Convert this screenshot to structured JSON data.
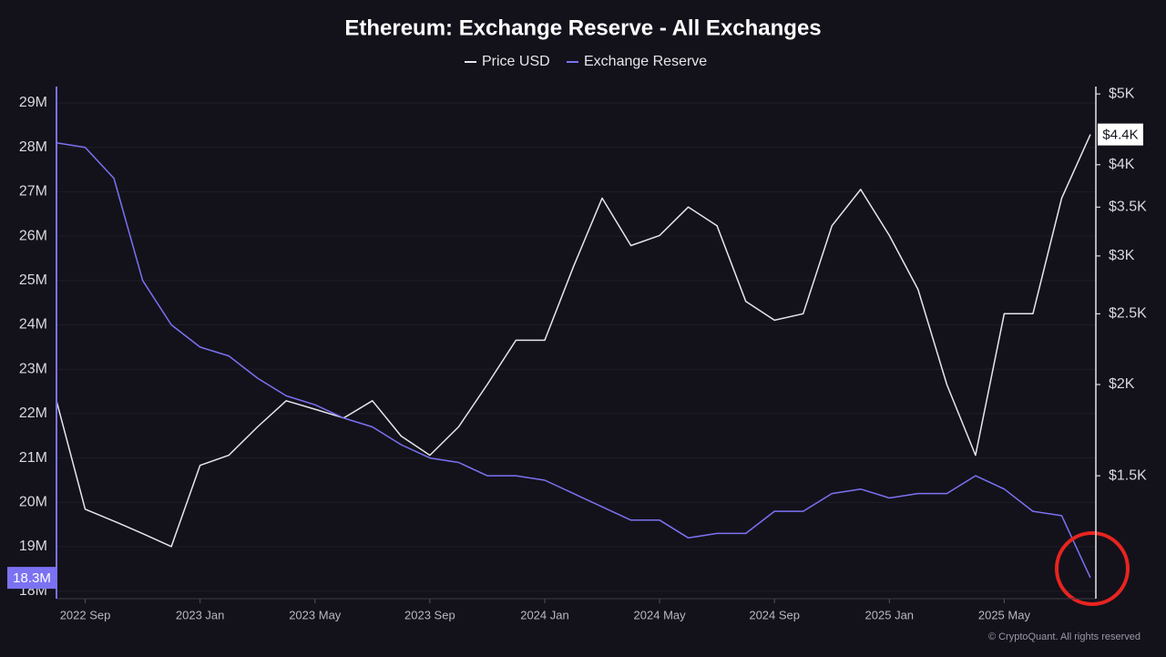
{
  "chart_data": {
    "type": "line",
    "title": "Ethereum: Exchange Reserve - All Exchanges",
    "credit": "© CryptoQuant. All rights reserved",
    "x": [
      "2022-08",
      "2022-09",
      "2022-10",
      "2022-11",
      "2022-12",
      "2023-01",
      "2023-02",
      "2023-03",
      "2023-04",
      "2023-05",
      "2023-06",
      "2023-07",
      "2023-08",
      "2023-09",
      "2023-10",
      "2023-11",
      "2023-12",
      "2024-01",
      "2024-02",
      "2024-03",
      "2024-04",
      "2024-05",
      "2024-06",
      "2024-07",
      "2024-08",
      "2024-09",
      "2024-10",
      "2024-11",
      "2024-12",
      "2025-01",
      "2025-02",
      "2025-03",
      "2025-04",
      "2025-05",
      "2025-06",
      "2025-07",
      "2025-08"
    ],
    "xlim": [
      "2022-08",
      "2025-08"
    ],
    "xticks": [
      {
        "value": "2022-09",
        "label": "2022 Sep"
      },
      {
        "value": "2023-01",
        "label": "2023 Jan"
      },
      {
        "value": "2023-05",
        "label": "2023 May"
      },
      {
        "value": "2023-09",
        "label": "2023 Sep"
      },
      {
        "value": "2024-01",
        "label": "2024 Jan"
      },
      {
        "value": "2024-05",
        "label": "2024 May"
      },
      {
        "value": "2024-09",
        "label": "2024 Sep"
      },
      {
        "value": "2025-01",
        "label": "2025 Jan"
      },
      {
        "value": "2025-05",
        "label": "2025 May"
      }
    ],
    "ylim": [
      17.83,
      29.37
    ],
    "yticks": [
      {
        "value": 18,
        "label": "18M"
      },
      {
        "value": 19,
        "label": "19M"
      },
      {
        "value": 20,
        "label": "20M"
      },
      {
        "value": 21,
        "label": "21M"
      },
      {
        "value": 22,
        "label": "22M"
      },
      {
        "value": 23,
        "label": "23M"
      },
      {
        "value": 24,
        "label": "24M"
      },
      {
        "value": 25,
        "label": "25M"
      },
      {
        "value": 26,
        "label": "26M"
      },
      {
        "value": 27,
        "label": "27M"
      },
      {
        "value": 28,
        "label": "28M"
      },
      {
        "value": 29,
        "label": "29M"
      }
    ],
    "y2lim": [
      1018,
      5118
    ],
    "y2scale": "log",
    "y2ticks": [
      {
        "value": 1500,
        "label": "$1.5K"
      },
      {
        "value": 2000,
        "label": "$2K"
      },
      {
        "value": 2500,
        "label": "$2.5K"
      },
      {
        "value": 3000,
        "label": "$3K"
      },
      {
        "value": 3500,
        "label": "$3.5K"
      },
      {
        "value": 4000,
        "label": "$4K"
      },
      {
        "value": 5000,
        "label": "$5K"
      }
    ],
    "grid": true,
    "series": [
      {
        "name": "Price USD",
        "color": "#e6e6ea",
        "axis": "y2",
        "values": [
          1900,
          1350,
          1300,
          1250,
          1200,
          1550,
          1600,
          1750,
          1900,
          1850,
          1800,
          1900,
          1700,
          1600,
          1750,
          2000,
          2300,
          2300,
          2900,
          3600,
          3100,
          3200,
          3500,
          3300,
          2600,
          2450,
          2500,
          3300,
          3700,
          3200,
          2700,
          2000,
          1600,
          2500,
          2500,
          3600,
          4400
        ],
        "value_labels": [
          null,
          null,
          null,
          null,
          null,
          null,
          null,
          null,
          null,
          null,
          null,
          null,
          null,
          null,
          null,
          null,
          null,
          null,
          null,
          null,
          null,
          null,
          null,
          null,
          null,
          null,
          null,
          null,
          null,
          null,
          null,
          null,
          null,
          null,
          null,
          null,
          "$4.4K"
        ]
      },
      {
        "name": "Exchange Reserve",
        "color": "#7b72f2",
        "values": [
          28.1,
          28.0,
          27.3,
          25.0,
          24.0,
          23.5,
          23.3,
          22.8,
          22.4,
          22.2,
          21.9,
          21.7,
          21.3,
          21.0,
          20.9,
          20.6,
          20.6,
          20.5,
          20.2,
          19.9,
          19.6,
          19.6,
          19.2,
          19.3,
          19.3,
          19.8,
          19.8,
          20.2,
          20.3,
          20.1,
          20.2,
          20.2,
          20.6,
          20.3,
          19.8,
          19.7,
          18.3
        ],
        "value_labels": [
          null,
          null,
          null,
          null,
          null,
          null,
          null,
          null,
          null,
          null,
          null,
          null,
          null,
          null,
          null,
          null,
          null,
          null,
          null,
          null,
          null,
          null,
          null,
          null,
          null,
          null,
          null,
          null,
          null,
          null,
          null,
          null,
          null,
          null,
          null,
          null,
          "18.3M"
        ]
      }
    ]
  }
}
